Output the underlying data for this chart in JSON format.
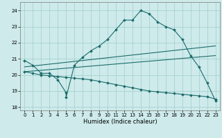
{
  "xlabel": "Humidex (Indice chaleur)",
  "xlim": [
    -0.5,
    23.5
  ],
  "ylim": [
    17.8,
    24.5
  ],
  "yticks": [
    18,
    19,
    20,
    21,
    22,
    23,
    24
  ],
  "xticks": [
    0,
    1,
    2,
    3,
    4,
    5,
    6,
    7,
    8,
    9,
    10,
    11,
    12,
    13,
    14,
    15,
    16,
    17,
    18,
    19,
    20,
    21,
    22,
    23
  ],
  "bg_color": "#ceeaea",
  "grid_color": "#9ecece",
  "line_color": "#1a6b6b",
  "line1_x": [
    0,
    1,
    2,
    3,
    4,
    5,
    5,
    6,
    7,
    8,
    9,
    10,
    11,
    12,
    13,
    14,
    15,
    16,
    17,
    18,
    19,
    20,
    21,
    22,
    23
  ],
  "line1_y": [
    20.9,
    20.6,
    20.1,
    20.1,
    19.7,
    18.9,
    18.6,
    20.6,
    21.1,
    21.5,
    21.8,
    22.2,
    22.8,
    23.4,
    23.4,
    24.0,
    23.8,
    23.3,
    23.0,
    22.8,
    22.2,
    21.2,
    20.5,
    19.5,
    18.4
  ],
  "line2_x": [
    0,
    1,
    2,
    3,
    4,
    5,
    6,
    7,
    8,
    9,
    10,
    11,
    12,
    13,
    14,
    15,
    16,
    17,
    18,
    19,
    20,
    21,
    22,
    23
  ],
  "line2_y": [
    20.2,
    20.1,
    20.0,
    19.95,
    19.9,
    19.85,
    19.8,
    19.75,
    19.7,
    19.6,
    19.5,
    19.4,
    19.3,
    19.2,
    19.1,
    19.0,
    18.95,
    18.9,
    18.85,
    18.8,
    18.75,
    18.7,
    18.65,
    18.5
  ],
  "line3_x": [
    0,
    23
  ],
  "line3_y": [
    20.2,
    21.2
  ],
  "line4_x": [
    0,
    23
  ],
  "line4_y": [
    20.5,
    21.8
  ]
}
